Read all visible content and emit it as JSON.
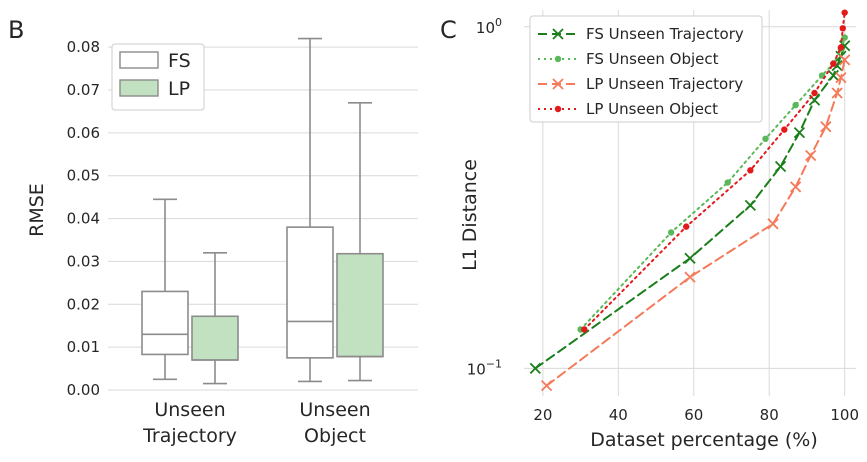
{
  "panel_b": {
    "label": "B",
    "chart_data": {
      "type": "box",
      "ylabel": "RMSE",
      "xlabel": "",
      "ylim": [
        0,
        0.084
      ],
      "yticks": [
        "0.00",
        "0.01",
        "0.02",
        "0.03",
        "0.04",
        "0.05",
        "0.06",
        "0.07",
        "0.08"
      ],
      "categories": [
        "Unseen\nTrajectory",
        "Unseen\nObject"
      ],
      "category_lines": [
        [
          "Unseen",
          "Trajectory"
        ],
        [
          "Unseen",
          "Object"
        ]
      ],
      "legend_position": "top-left",
      "grid": true,
      "series": [
        {
          "name": "FS",
          "color": "#ffffff",
          "boxes": [
            {
              "whislo": 0.0025,
              "q1": 0.0083,
              "med": 0.013,
              "q3": 0.023,
              "whishi": 0.0445
            },
            {
              "whislo": 0.002,
              "q1": 0.0075,
              "med": 0.016,
              "q3": 0.038,
              "whishi": 0.082
            }
          ]
        },
        {
          "name": "LP",
          "color": "#c1e1c1",
          "boxes": [
            {
              "whislo": 0.0015,
              "q1": 0.007,
              "med": 0.007,
              "q3": 0.0172,
              "whishi": 0.032
            },
            {
              "whislo": 0.0022,
              "q1": 0.0078,
              "med": 0.0078,
              "q3": 0.0318,
              "whishi": 0.067
            }
          ]
        }
      ]
    }
  },
  "panel_c": {
    "label": "C",
    "chart_data": {
      "type": "line",
      "xlabel": "Dataset percentage (%)",
      "ylabel": "L1 Distance",
      "yscale": "log",
      "xlim": [
        15,
        103
      ],
      "ylim": [
        0.083,
        1.12
      ],
      "xticks": [
        "20",
        "40",
        "60",
        "80",
        "100"
      ],
      "xtick_values": [
        20,
        40,
        60,
        80,
        100
      ],
      "yticks": [
        {
          "base": "10",
          "exp": "0",
          "value": 1.0
        },
        {
          "base": "10",
          "exp": "−1",
          "value": 0.1
        }
      ],
      "legend_position": "top-left",
      "grid": true,
      "series": [
        {
          "name": "FS Unseen Trajectory",
          "color": "#1a7f1a",
          "linestyle": "dashed",
          "marker": "x",
          "x": [
            18,
            59,
            75,
            83,
            88,
            92,
            97,
            98,
            99,
            100
          ],
          "y": [
            0.1,
            0.21,
            0.3,
            0.39,
            0.49,
            0.61,
            0.72,
            0.77,
            0.82,
            0.88
          ]
        },
        {
          "name": "FS Unseen Object",
          "color": "#5ab85a",
          "linestyle": "dotted",
          "marker": "dot",
          "x": [
            30,
            54,
            69,
            79,
            87,
            94,
            97,
            99,
            100
          ],
          "y": [
            0.13,
            0.25,
            0.35,
            0.47,
            0.59,
            0.72,
            0.78,
            0.86,
            0.93
          ]
        },
        {
          "name": "LP Unseen Trajectory",
          "color": "#f47a5a",
          "linestyle": "dashed",
          "marker": "x",
          "x": [
            21,
            59,
            81,
            87,
            91,
            95,
            98,
            99,
            100
          ],
          "y": [
            0.089,
            0.185,
            0.265,
            0.34,
            0.42,
            0.51,
            0.64,
            0.71,
            0.8
          ]
        },
        {
          "name": "LP Unseen Object",
          "color": "#e31a1c",
          "linestyle": "dotted",
          "marker": "dot",
          "x": [
            31,
            58,
            75,
            84,
            92,
            97,
            99,
            99.5,
            100
          ],
          "y": [
            0.13,
            0.26,
            0.38,
            0.5,
            0.64,
            0.78,
            0.87,
            0.99,
            1.1
          ]
        }
      ]
    }
  }
}
